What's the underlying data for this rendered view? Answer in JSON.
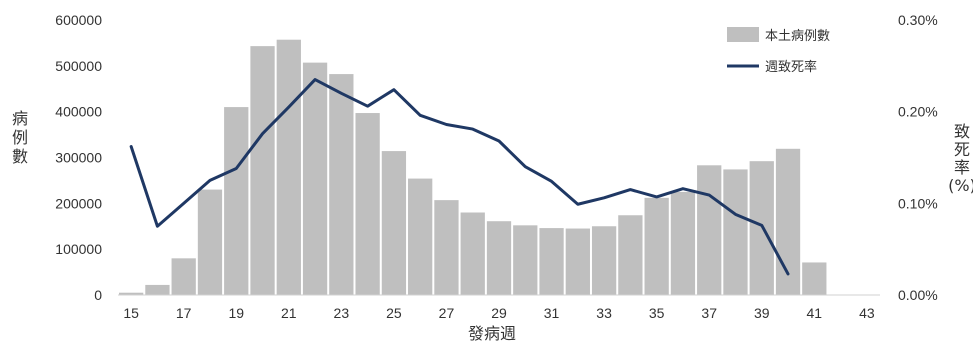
{
  "chart_data": {
    "type": "bar",
    "xlabel": "發病週",
    "ylabel": "病例數",
    "y2label": "致死率(%)",
    "categories": [
      15,
      16,
      17,
      18,
      19,
      20,
      21,
      22,
      23,
      24,
      25,
      26,
      27,
      28,
      29,
      30,
      31,
      32,
      33,
      34,
      35,
      36,
      37,
      38,
      39,
      40,
      41,
      42,
      43
    ],
    "x_tick_labels": [
      "15",
      "17",
      "19",
      "21",
      "23",
      "25",
      "27",
      "29",
      "31",
      "33",
      "35",
      "37",
      "39",
      "41",
      "43"
    ],
    "ylim": [
      0,
      600000
    ],
    "y_tick_labels": [
      "0",
      "100000",
      "200000",
      "300000",
      "400000",
      "500000",
      "600000"
    ],
    "y2lim": [
      0,
      0.3
    ],
    "y2_tick_labels": [
      "0.00%",
      "0.10%",
      "0.20%",
      "0.30%"
    ],
    "legend_position": "top-right",
    "grid": false,
    "series": [
      {
        "name": "本土病例數",
        "type": "bar",
        "color": "#bfbfbf",
        "axis": "left",
        "values": [
          5000,
          22000,
          80000,
          230000,
          410000,
          543000,
          557000,
          507000,
          482000,
          397000,
          314000,
          254000,
          207000,
          180000,
          161000,
          152000,
          146000,
          145000,
          150000,
          174000,
          212000,
          225000,
          283000,
          274000,
          292000,
          319000,
          71000,
          0,
          0
        ]
      },
      {
        "name": "週致死率",
        "type": "line",
        "color": "#1f3864",
        "axis": "right",
        "values": [
          0.162,
          0.075,
          0.1,
          0.125,
          0.138,
          0.176,
          0.205,
          0.235,
          0.22,
          0.206,
          0.224,
          0.196,
          0.186,
          0.181,
          0.168,
          0.14,
          0.124,
          0.099,
          0.106,
          0.115,
          0.107,
          0.116,
          0.109,
          0.088,
          0.076,
          0.023,
          null,
          null,
          null
        ]
      }
    ]
  }
}
